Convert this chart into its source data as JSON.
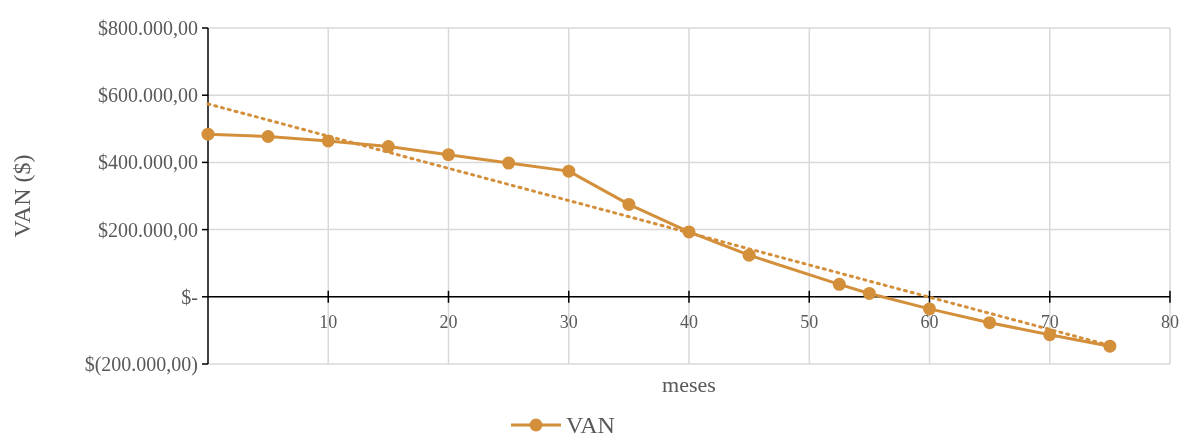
{
  "chart_data": {
    "type": "line",
    "xlabel": "meses",
    "ylabel": "VAN ($)",
    "xlim": [
      0,
      80
    ],
    "xticks": [
      10,
      20,
      30,
      40,
      50,
      60,
      70,
      80
    ],
    "ylim": [
      -200000,
      800000
    ],
    "yticks": [
      {
        "value": -200000,
        "label": "$(200.000,00)"
      },
      {
        "value": 0,
        "label": "$-"
      },
      {
        "value": 200000,
        "label": "$200.000,00"
      },
      {
        "value": 400000,
        "label": "$400.000,00"
      },
      {
        "value": 600000,
        "label": "$600.000,00"
      },
      {
        "value": 800000,
        "label": "$800.000,00"
      }
    ],
    "grid": true,
    "legend": "bottom",
    "series": [
      {
        "name": "VAN",
        "color": "#d48f3a",
        "marker": "circle",
        "line_style": "solid",
        "x": [
          0,
          5,
          10,
          15,
          20,
          25,
          30,
          35,
          40,
          45,
          52.5,
          55,
          60,
          65,
          70,
          75
        ],
        "values": [
          484000,
          477000,
          464000,
          447000,
          423000,
          398000,
          374000,
          275000,
          193000,
          124000,
          37000,
          10000,
          -36000,
          -77000,
          -113000,
          -147000
        ]
      },
      {
        "type": "line",
        "color": "#d48f3a",
        "marker": "none",
        "line_style": "dotted",
        "x": [
          0,
          75
        ],
        "values": [
          574000,
          -145000
        ]
      }
    ]
  }
}
